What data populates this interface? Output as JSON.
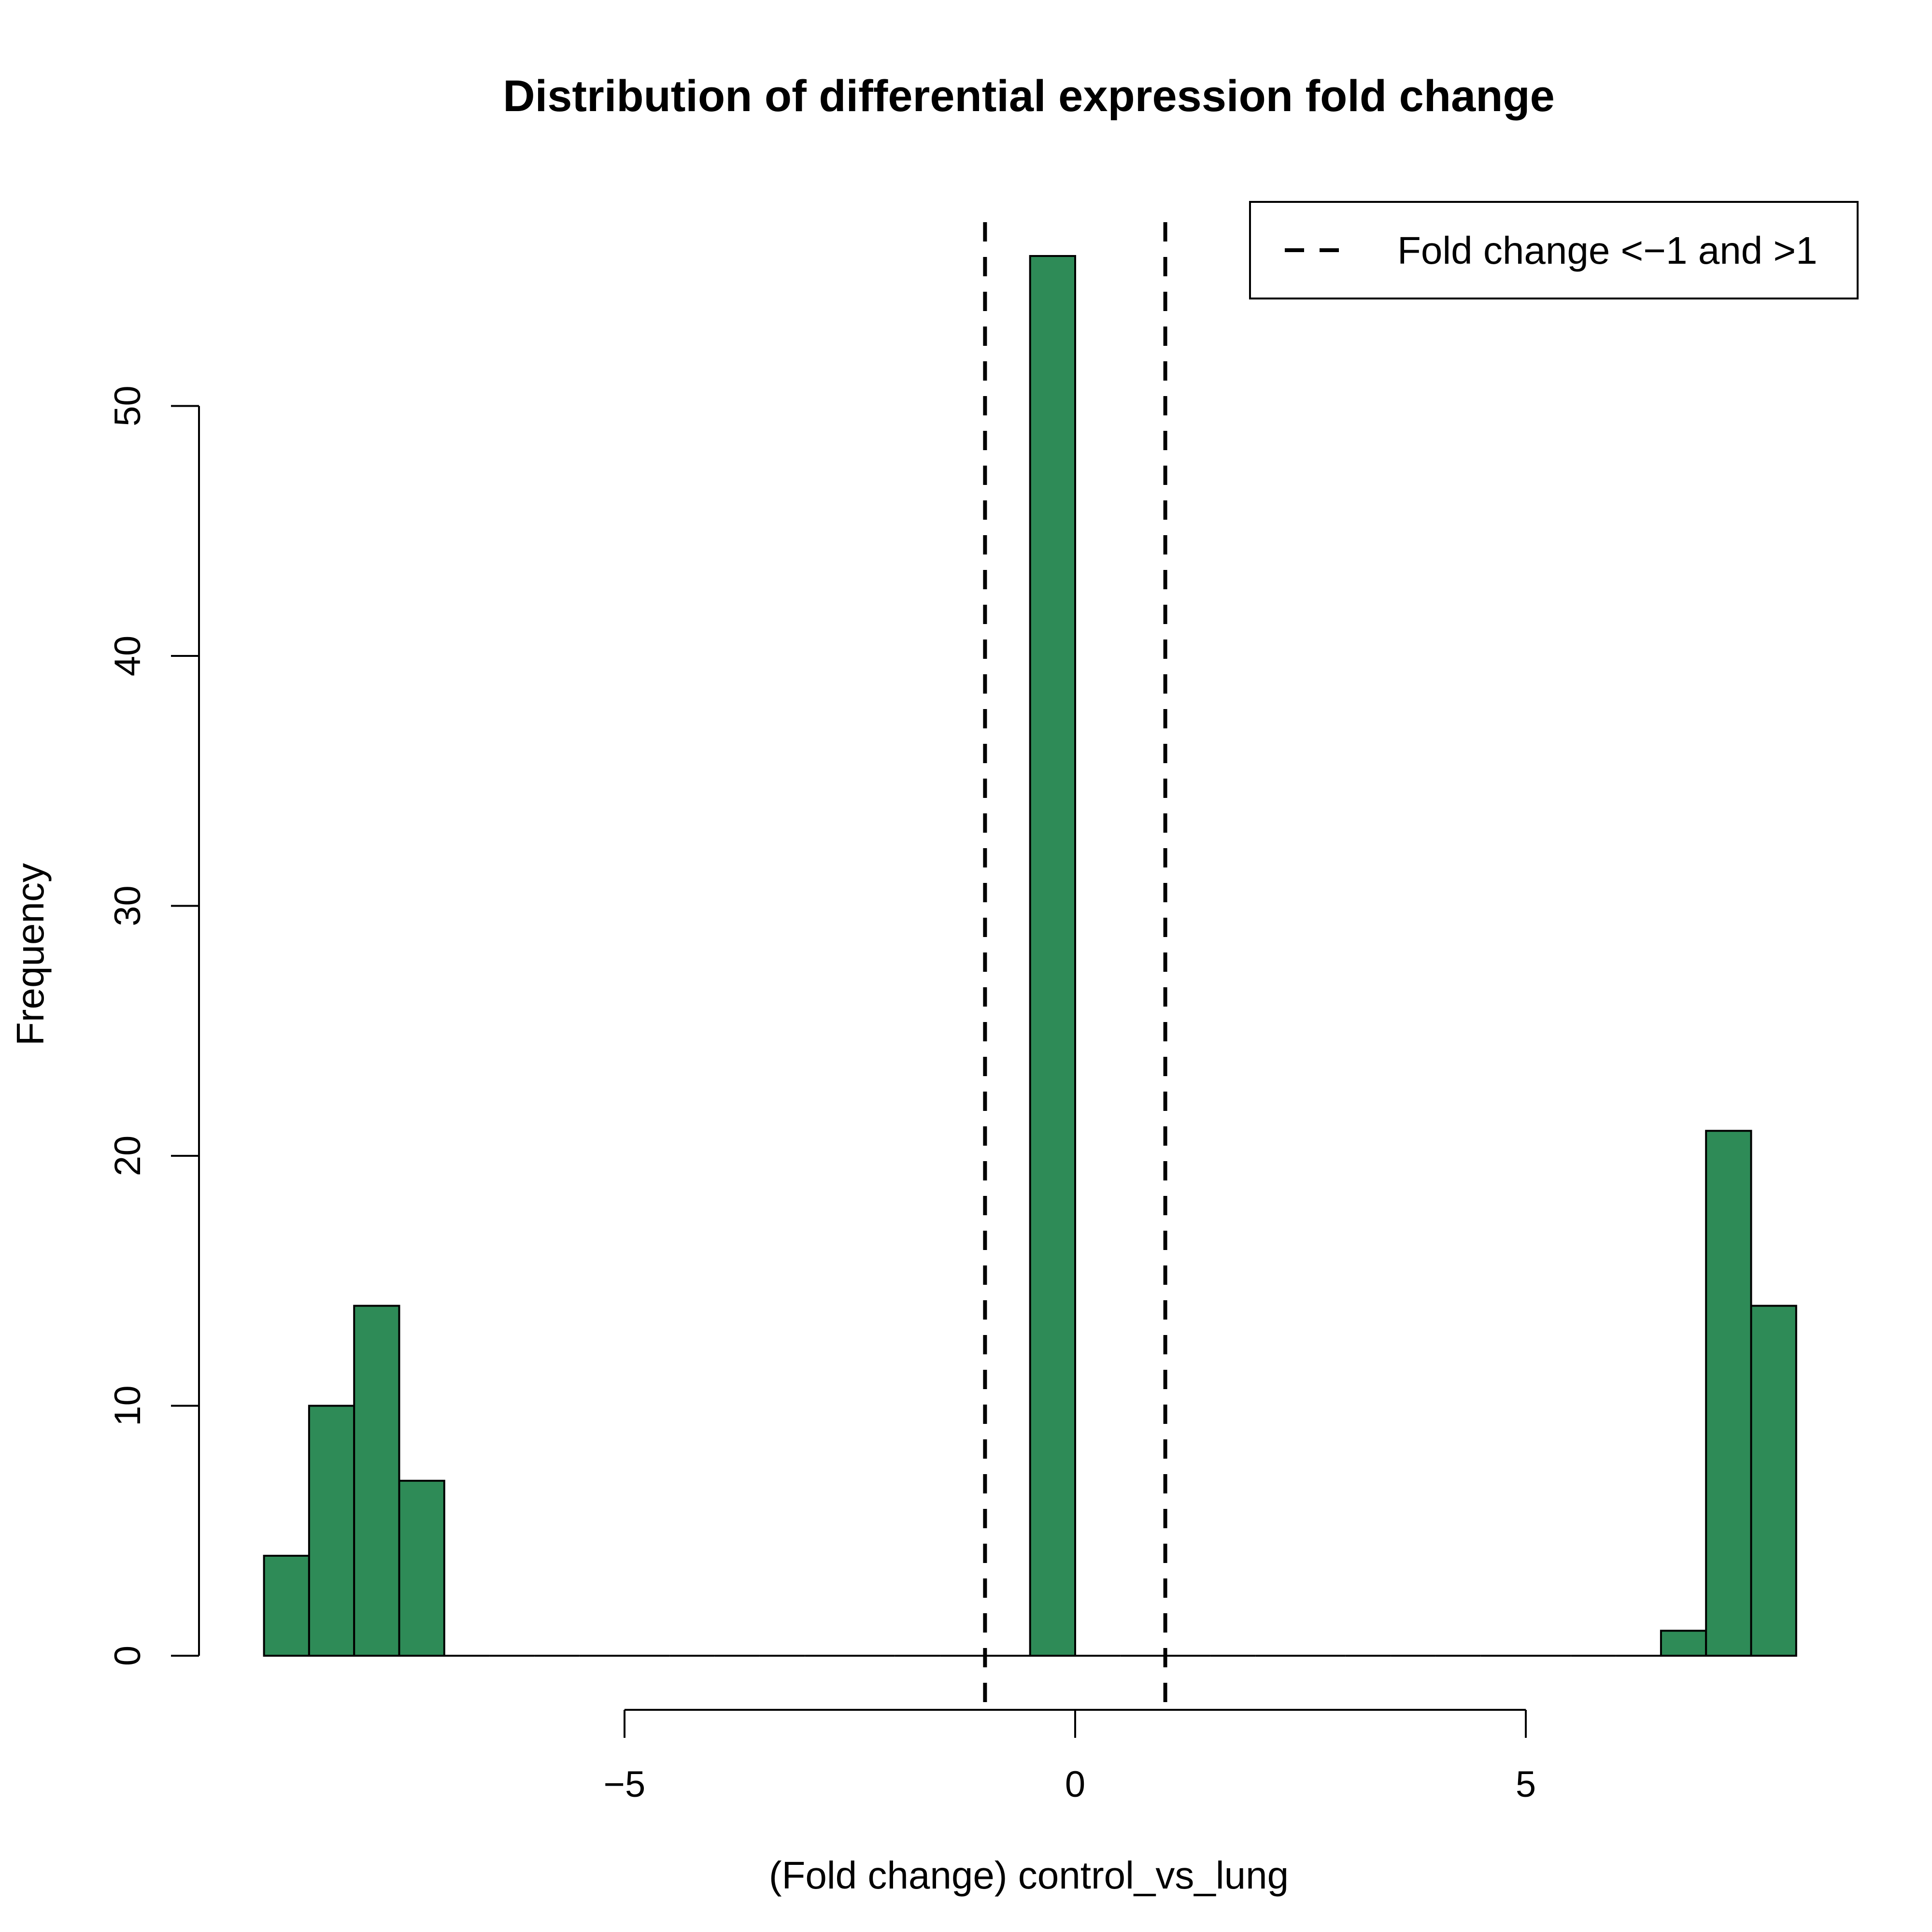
{
  "chart_data": {
    "type": "bar",
    "title": "Distribution of differential expression fold change",
    "xlabel": "(Fold change) control_vs_lung",
    "ylabel": "Frequency",
    "x_ticks": [
      -5,
      0,
      5
    ],
    "x_tick_labels": [
      "−5",
      "0",
      "5"
    ],
    "y_ticks": [
      0,
      10,
      20,
      30,
      40,
      50
    ],
    "y_tick_labels": [
      "0",
      "10",
      "20",
      "30",
      "40",
      "50"
    ],
    "xlim": [
      -9.5,
      8.5
    ],
    "ylim": [
      0,
      58.5
    ],
    "bar_color": "#2E8B57",
    "bins": [
      {
        "start": -9.0,
        "end": -8.5,
        "count": 4
      },
      {
        "start": -8.5,
        "end": -8.0,
        "count": 10
      },
      {
        "start": -8.0,
        "end": -7.5,
        "count": 14
      },
      {
        "start": -7.5,
        "end": -7.0,
        "count": 7
      },
      {
        "start": -7.0,
        "end": -6.5,
        "count": 0
      },
      {
        "start": -6.5,
        "end": -6.0,
        "count": 0
      },
      {
        "start": -6.0,
        "end": -5.5,
        "count": 0
      },
      {
        "start": -5.5,
        "end": -5.0,
        "count": 0
      },
      {
        "start": -5.0,
        "end": -4.5,
        "count": 0
      },
      {
        "start": -4.5,
        "end": -4.0,
        "count": 0
      },
      {
        "start": -4.0,
        "end": -3.5,
        "count": 0
      },
      {
        "start": -3.5,
        "end": -3.0,
        "count": 0
      },
      {
        "start": -3.0,
        "end": -2.5,
        "count": 0
      },
      {
        "start": -2.5,
        "end": -2.0,
        "count": 0
      },
      {
        "start": -2.0,
        "end": -1.5,
        "count": 0
      },
      {
        "start": -1.5,
        "end": -1.0,
        "count": 0
      },
      {
        "start": -1.0,
        "end": -0.5,
        "count": 0
      },
      {
        "start": -0.5,
        "end": 0.0,
        "count": 56
      },
      {
        "start": 0.0,
        "end": 0.5,
        "count": 0
      },
      {
        "start": 0.5,
        "end": 1.0,
        "count": 0
      },
      {
        "start": 1.0,
        "end": 1.5,
        "count": 0
      },
      {
        "start": 1.5,
        "end": 2.0,
        "count": 0
      },
      {
        "start": 2.0,
        "end": 2.5,
        "count": 0
      },
      {
        "start": 2.5,
        "end": 3.0,
        "count": 0
      },
      {
        "start": 3.0,
        "end": 3.5,
        "count": 0
      },
      {
        "start": 3.5,
        "end": 4.0,
        "count": 0
      },
      {
        "start": 4.0,
        "end": 4.5,
        "count": 0
      },
      {
        "start": 4.5,
        "end": 5.0,
        "count": 0
      },
      {
        "start": 5.0,
        "end": 5.5,
        "count": 0
      },
      {
        "start": 5.5,
        "end": 6.0,
        "count": 0
      },
      {
        "start": 6.0,
        "end": 6.5,
        "count": 0
      },
      {
        "start": 6.5,
        "end": 7.0,
        "count": 1
      },
      {
        "start": 7.0,
        "end": 7.5,
        "count": 21
      },
      {
        "start": 7.5,
        "end": 8.0,
        "count": 14
      }
    ],
    "reference_lines": [
      -1,
      1
    ],
    "legend": {
      "position": "top-right",
      "entries": [
        {
          "label": "Fold change <−1 and >1",
          "line_style": "dashed"
        }
      ]
    },
    "grid": false
  }
}
